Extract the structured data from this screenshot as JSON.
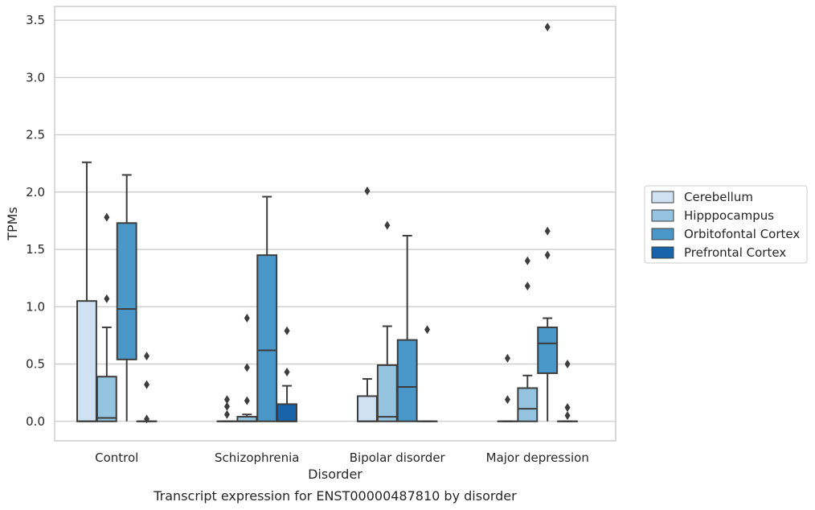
{
  "chart_data": {
    "type": "box",
    "title": "",
    "caption": "Transcript expression for ENST00000487810 by disorder",
    "xlabel": "Disorder",
    "ylabel": "TPMs",
    "ylim": [
      -0.17,
      3.62
    ],
    "yticks": [
      "0.0",
      "0.5",
      "1.0",
      "1.5",
      "2.0",
      "2.5",
      "3.0",
      "3.5"
    ],
    "ytick_values": [
      0,
      0.5,
      1.0,
      1.5,
      2.0,
      2.5,
      3.0,
      3.5
    ],
    "grid": "horizontal",
    "legend_position": "right",
    "categories": [
      "Control",
      "Schizophrenia",
      "Bipolar disorder",
      "Major depression"
    ],
    "series": [
      {
        "name": "Cerebellum",
        "color": "#d0e1f2",
        "boxes": [
          {
            "q1": 0,
            "median": 0,
            "q3": 1.05,
            "whisker_low": 0,
            "whisker_high": 2.26,
            "outliers": []
          },
          {
            "q1": 0,
            "median": 0,
            "q3": 0,
            "whisker_low": 0,
            "whisker_high": 0,
            "outliers": [
              0.06,
              0.13,
              0.19
            ]
          },
          {
            "q1": 0,
            "median": 0,
            "q3": 0.22,
            "whisker_low": 0,
            "whisker_high": 0.37,
            "outliers": [
              2.01
            ]
          },
          {
            "q1": 0,
            "median": 0,
            "q3": 0,
            "whisker_low": 0,
            "whisker_high": 0,
            "outliers": [
              0.19,
              0.55
            ]
          }
        ]
      },
      {
        "name": "Hipppocampus",
        "color": "#94c4df",
        "boxes": [
          {
            "q1": 0,
            "median": 0.03,
            "q3": 0.39,
            "whisker_low": 0,
            "whisker_high": 0.82,
            "outliers": [
              1.07,
              1.78
            ]
          },
          {
            "q1": 0,
            "median": 0,
            "q3": 0.04,
            "whisker_low": 0,
            "whisker_high": 0.06,
            "outliers": [
              0.18,
              0.47,
              0.9
            ]
          },
          {
            "q1": 0,
            "median": 0.04,
            "q3": 0.49,
            "whisker_low": 0,
            "whisker_high": 0.83,
            "outliers": [
              1.71
            ]
          },
          {
            "q1": 0,
            "median": 0.11,
            "q3": 0.29,
            "whisker_low": 0,
            "whisker_high": 0.4,
            "outliers": [
              1.18,
              1.4
            ]
          }
        ]
      },
      {
        "name": "Orbitofontal Cortex",
        "color": "#4a98c9",
        "boxes": [
          {
            "q1": 0.54,
            "median": 0.98,
            "q3": 1.73,
            "whisker_low": 0,
            "whisker_high": 2.15,
            "outliers": []
          },
          {
            "q1": 0,
            "median": 0.62,
            "q3": 1.45,
            "whisker_low": 0,
            "whisker_high": 1.96,
            "outliers": []
          },
          {
            "q1": 0,
            "median": 0.3,
            "q3": 0.71,
            "whisker_low": 0,
            "whisker_high": 1.62,
            "outliers": []
          },
          {
            "q1": 0.42,
            "median": 0.68,
            "q3": 0.82,
            "whisker_low": 0,
            "whisker_high": 0.9,
            "outliers": [
              1.45,
              1.66,
              3.44
            ]
          }
        ]
      },
      {
        "name": "Prefrontal Cortex",
        "color": "#1764ab",
        "boxes": [
          {
            "q1": 0,
            "median": 0,
            "q3": 0,
            "whisker_low": 0,
            "whisker_high": 0,
            "outliers": [
              0.02,
              0.32,
              0.57
            ]
          },
          {
            "q1": 0,
            "median": 0,
            "q3": 0.15,
            "whisker_low": 0,
            "whisker_high": 0.31,
            "outliers": [
              0.43,
              0.79
            ]
          },
          {
            "q1": 0,
            "median": 0,
            "q3": 0,
            "whisker_low": 0,
            "whisker_high": 0,
            "outliers": [
              0.8
            ]
          },
          {
            "q1": 0,
            "median": 0,
            "q3": 0,
            "whisker_low": 0,
            "whisker_high": 0,
            "outliers": [
              0.05,
              0.12,
              0.5
            ]
          }
        ]
      }
    ]
  }
}
